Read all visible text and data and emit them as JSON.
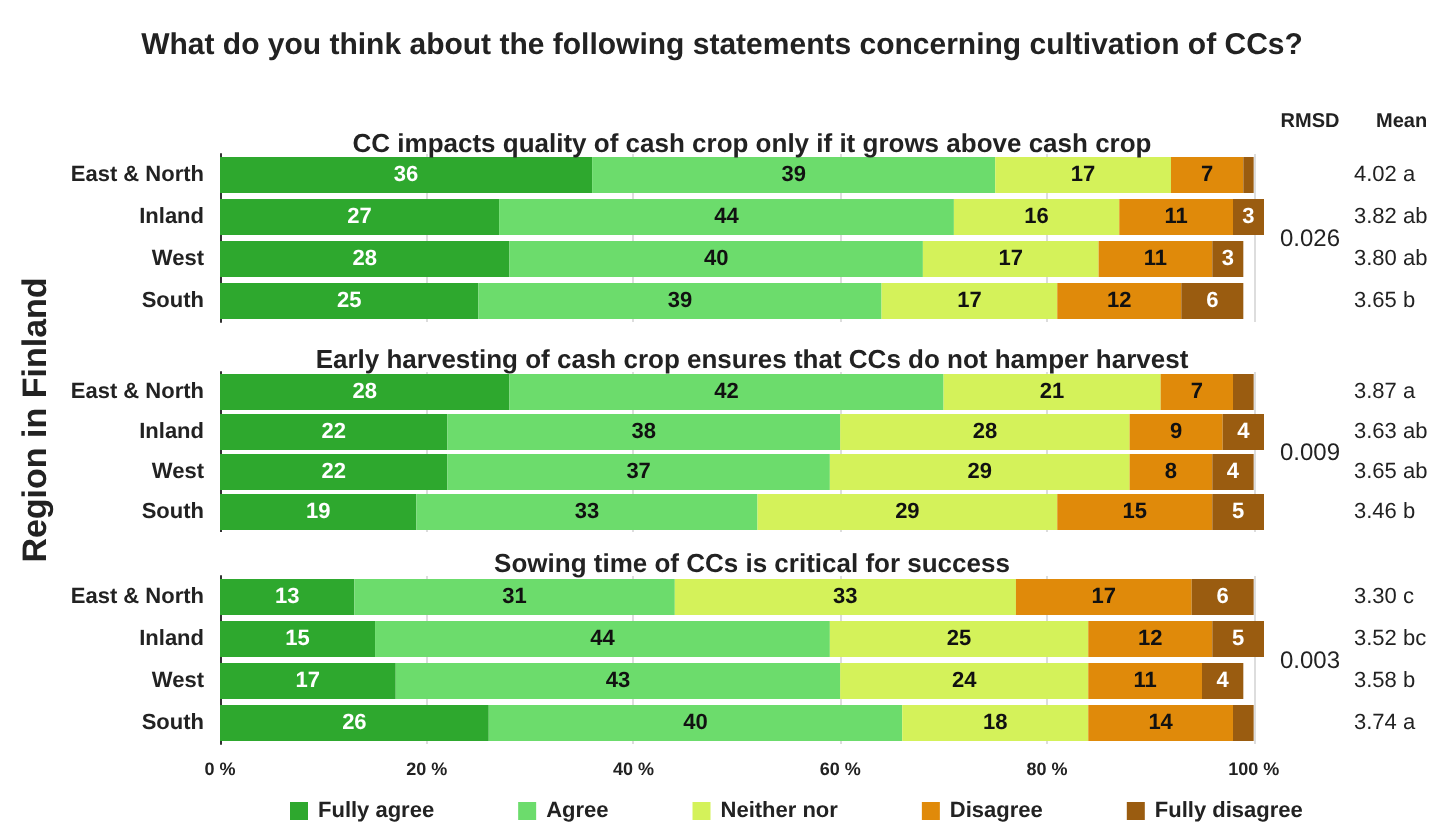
{
  "chart_data": [
    {
      "type": "bar",
      "orientation": "horizontal",
      "stacked": true,
      "title": "What do you think about the following statements concerning cultivation of CCs?",
      "subtitle": "CC impacts quality of cash crop only if it grows above cash crop",
      "categories": [
        "East & North",
        "Inland",
        "West",
        "South"
      ],
      "series": [
        {
          "color": "#2ea82e",
          "values": [
            36,
            27,
            28,
            25
          ],
          "value_labels": [
            "36",
            "27",
            "28",
            "25"
          ]
        },
        {
          "color": "#6cdc6c",
          "values": [
            39,
            44,
            40,
            39
          ],
          "value_labels": [
            "39",
            "44",
            "40",
            "39"
          ]
        },
        {
          "color": "#d4f25a",
          "values": [
            17,
            16,
            17,
            17
          ],
          "value_labels": [
            "17",
            "16",
            "17",
            "17"
          ]
        },
        {
          "color": "#e08a0a",
          "values": [
            7,
            11,
            11,
            12
          ],
          "value_labels": [
            "7",
            "11",
            "11",
            "12"
          ]
        },
        {
          "color": "#9a5c10",
          "values": [
            1,
            3,
            3,
            6
          ],
          "value_labels": [
            null,
            "3",
            "3",
            "6"
          ]
        }
      ],
      "xlim": [
        0,
        101
      ],
      "xticks": [
        0,
        20,
        40,
        60,
        80,
        100
      ],
      "tick_labels": "y",
      "grid": "x",
      "annotations": [
        "RMSD",
        "Mean",
        "0.026",
        "4.02 a",
        "3.82 ab",
        "3.80 ab",
        "3.65 b"
      ]
    },
    {
      "type": "bar",
      "orientation": "horizontal",
      "stacked": true,
      "subtitle": "Early harvesting of cash crop ensures that CCs do not hamper harvest",
      "ylabel": "Region in Finland",
      "categories": [
        "East & North",
        "Inland",
        "West",
        "South"
      ],
      "series": [
        {
          "color": "#2ea82e",
          "values": [
            28,
            22,
            22,
            19
          ],
          "value_labels": [
            "28",
            "22",
            "22",
            "19"
          ]
        },
        {
          "color": "#6cdc6c",
          "values": [
            42,
            38,
            37,
            33
          ],
          "value_labels": [
            "42",
            "38",
            "37",
            "33"
          ]
        },
        {
          "color": "#d4f25a",
          "values": [
            21,
            28,
            29,
            29
          ],
          "value_labels": [
            "21",
            "28",
            "29",
            "29"
          ]
        },
        {
          "color": "#e08a0a",
          "values": [
            7,
            9,
            8,
            15
          ],
          "value_labels": [
            "7",
            "9",
            "8",
            "15"
          ]
        },
        {
          "color": "#9a5c10",
          "values": [
            2,
            4,
            4,
            5
          ],
          "value_labels": [
            null,
            "4",
            "4",
            "5"
          ]
        }
      ],
      "xlim": [
        0,
        101
      ],
      "xticks": [
        0,
        20,
        40,
        60,
        80,
        100
      ],
      "tick_labels": "y",
      "grid": "x",
      "annotations": [
        "0.009",
        "3.87 a",
        "3.63 ab",
        "3.65 ab",
        "3.46 b"
      ]
    },
    {
      "type": "bar",
      "orientation": "horizontal",
      "stacked": true,
      "subtitle": "Sowing time of CCs is critical for success",
      "categories": [
        "East & North",
        "Inland",
        "West",
        "South"
      ],
      "series": [
        {
          "name": "Fully agree",
          "color": "#2ea82e",
          "values": [
            13,
            15,
            17,
            26
          ],
          "value_labels": [
            "13",
            "15",
            "17",
            "26"
          ]
        },
        {
          "name": "Agree",
          "color": "#6cdc6c",
          "values": [
            31,
            44,
            43,
            40
          ],
          "value_labels": [
            "31",
            "44",
            "43",
            "40"
          ]
        },
        {
          "name": "Neither nor",
          "color": "#d4f25a",
          "values": [
            33,
            25,
            24,
            18
          ],
          "value_labels": [
            "33",
            "25",
            "24",
            "18"
          ]
        },
        {
          "name": "Disagree",
          "color": "#e08a0a",
          "values": [
            17,
            12,
            11,
            14
          ],
          "value_labels": [
            "17",
            "12",
            "11",
            "14"
          ]
        },
        {
          "name": "Fully disagree",
          "color": "#9a5c10",
          "values": [
            6,
            5,
            4,
            2
          ],
          "value_labels": [
            "6",
            "5",
            "4",
            null
          ]
        }
      ],
      "xlim": [
        0,
        101
      ],
      "xticks": [
        {
          "value": 0,
          "label": "0 %"
        },
        {
          "value": 20,
          "label": "20 %"
        },
        {
          "value": 40,
          "label": "40 %"
        },
        {
          "value": 60,
          "label": "60 %"
        },
        {
          "value": 80,
          "label": "80 %"
        },
        {
          "value": 100,
          "label": "100 %"
        }
      ],
      "grid": "x",
      "legend": "bottom",
      "annotations": [
        "0.003",
        "3.30 c",
        "3.52 bc",
        "3.58 b",
        "3.74 a"
      ]
    }
  ]
}
